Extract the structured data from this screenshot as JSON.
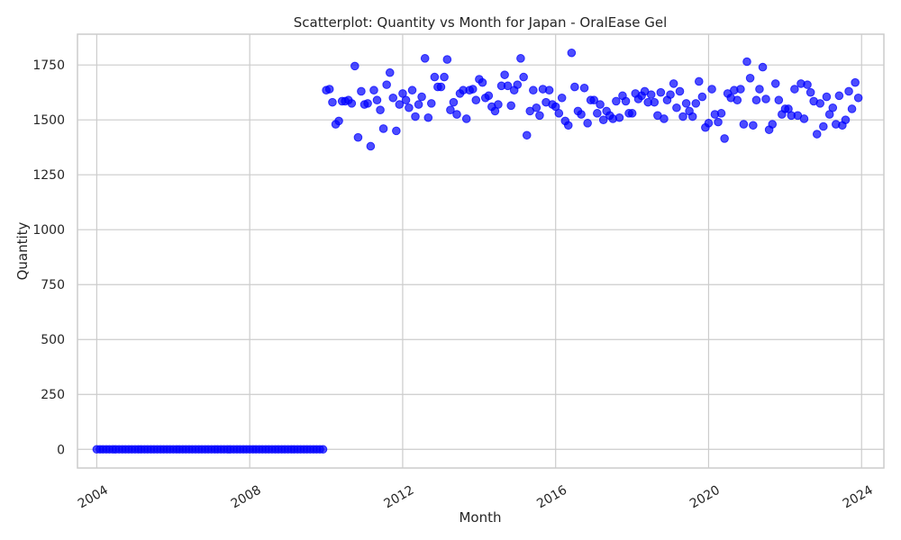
{
  "chart_data": {
    "type": "scatter",
    "title": "Scatterplot: Quantity vs Month for Japan - OralEase Gel",
    "xlabel": "Month",
    "ylabel": "Quantity",
    "xlim": [
      "2003-07-01",
      "2024-08-01"
    ],
    "ylim": [
      -85,
      1890
    ],
    "x_ticks": [
      {
        "label": "2004",
        "value": "2004-01-01"
      },
      {
        "label": "2008",
        "value": "2008-01-01"
      },
      {
        "label": "2012",
        "value": "2012-01-01"
      },
      {
        "label": "2016",
        "value": "2016-01-01"
      },
      {
        "label": "2020",
        "value": "2020-01-01"
      },
      {
        "label": "2024",
        "value": "2024-01-01"
      }
    ],
    "y_ticks": [
      0,
      250,
      500,
      750,
      1000,
      1250,
      1500,
      1750
    ],
    "grid": true,
    "color": "#0000ff",
    "x": [
      "2004-01",
      "2004-02",
      "2004-03",
      "2004-04",
      "2004-05",
      "2004-06",
      "2004-07",
      "2004-08",
      "2004-09",
      "2004-10",
      "2004-11",
      "2004-12",
      "2005-01",
      "2005-02",
      "2005-03",
      "2005-04",
      "2005-05",
      "2005-06",
      "2005-07",
      "2005-08",
      "2005-09",
      "2005-10",
      "2005-11",
      "2005-12",
      "2006-01",
      "2006-02",
      "2006-03",
      "2006-04",
      "2006-05",
      "2006-06",
      "2006-07",
      "2006-08",
      "2006-09",
      "2006-10",
      "2006-11",
      "2006-12",
      "2007-01",
      "2007-02",
      "2007-03",
      "2007-04",
      "2007-05",
      "2007-06",
      "2007-07",
      "2007-08",
      "2007-09",
      "2007-10",
      "2007-11",
      "2007-12",
      "2008-01",
      "2008-02",
      "2008-03",
      "2008-04",
      "2008-05",
      "2008-06",
      "2008-07",
      "2008-08",
      "2008-09",
      "2008-10",
      "2008-11",
      "2008-12",
      "2009-01",
      "2009-02",
      "2009-03",
      "2009-04",
      "2009-05",
      "2009-06",
      "2009-07",
      "2009-08",
      "2009-09",
      "2009-10",
      "2009-11",
      "2009-12",
      "2010-01",
      "2010-02",
      "2010-03",
      "2010-04",
      "2010-05",
      "2010-06",
      "2010-07",
      "2010-08",
      "2010-09",
      "2010-10",
      "2010-11",
      "2010-12",
      "2011-01",
      "2011-02",
      "2011-03",
      "2011-04",
      "2011-05",
      "2011-06",
      "2011-07",
      "2011-08",
      "2011-09",
      "2011-10",
      "2011-11",
      "2011-12",
      "2012-01",
      "2012-02",
      "2012-03",
      "2012-04",
      "2012-05",
      "2012-06",
      "2012-07",
      "2012-08",
      "2012-09",
      "2012-10",
      "2012-11",
      "2012-12",
      "2013-01",
      "2013-02",
      "2013-03",
      "2013-04",
      "2013-05",
      "2013-06",
      "2013-07",
      "2013-08",
      "2013-09",
      "2013-10",
      "2013-11",
      "2013-12",
      "2014-01",
      "2014-02",
      "2014-03",
      "2014-04",
      "2014-05",
      "2014-06",
      "2014-07",
      "2014-08",
      "2014-09",
      "2014-10",
      "2014-11",
      "2014-12",
      "2015-01",
      "2015-02",
      "2015-03",
      "2015-04",
      "2015-05",
      "2015-06",
      "2015-07",
      "2015-08",
      "2015-09",
      "2015-10",
      "2015-11",
      "2015-12",
      "2016-01",
      "2016-02",
      "2016-03",
      "2016-04",
      "2016-05",
      "2016-06",
      "2016-07",
      "2016-08",
      "2016-09",
      "2016-10",
      "2016-11",
      "2016-12",
      "2017-01",
      "2017-02",
      "2017-03",
      "2017-04",
      "2017-05",
      "2017-06",
      "2017-07",
      "2017-08",
      "2017-09",
      "2017-10",
      "2017-11",
      "2017-12",
      "2018-01",
      "2018-02",
      "2018-03",
      "2018-04",
      "2018-05",
      "2018-06",
      "2018-07",
      "2018-08",
      "2018-09",
      "2018-10",
      "2018-11",
      "2018-12",
      "2019-01",
      "2019-02",
      "2019-03",
      "2019-04",
      "2019-05",
      "2019-06",
      "2019-07",
      "2019-08",
      "2019-09",
      "2019-10",
      "2019-11",
      "2019-12",
      "2020-01",
      "2020-02",
      "2020-03",
      "2020-04",
      "2020-05",
      "2020-06",
      "2020-07",
      "2020-08",
      "2020-09",
      "2020-10",
      "2020-11",
      "2020-12",
      "2021-01",
      "2021-02",
      "2021-03",
      "2021-04",
      "2021-05",
      "2021-06",
      "2021-07",
      "2021-08",
      "2021-09",
      "2021-10",
      "2021-11",
      "2021-12",
      "2022-01",
      "2022-02",
      "2022-03",
      "2022-04",
      "2022-05",
      "2022-06",
      "2022-07",
      "2022-08",
      "2022-09",
      "2022-10",
      "2022-11",
      "2022-12",
      "2023-01",
      "2023-02",
      "2023-03",
      "2023-04",
      "2023-05",
      "2023-06",
      "2023-07",
      "2023-08",
      "2023-09",
      "2023-10",
      "2023-11",
      "2023-12"
    ],
    "y": [
      0,
      0,
      0,
      0,
      0,
      0,
      0,
      0,
      0,
      0,
      0,
      0,
      0,
      0,
      0,
      0,
      0,
      0,
      0,
      0,
      0,
      0,
      0,
      0,
      0,
      0,
      0,
      0,
      0,
      0,
      0,
      0,
      0,
      0,
      0,
      0,
      0,
      0,
      0,
      0,
      0,
      0,
      0,
      0,
      0,
      0,
      0,
      0,
      0,
      0,
      0,
      0,
      0,
      0,
      0,
      0,
      0,
      0,
      0,
      0,
      0,
      0,
      0,
      0,
      0,
      0,
      0,
      0,
      0,
      0,
      0,
      0,
      1635,
      1640,
      1580,
      1480,
      1495,
      1585,
      1585,
      1590,
      1575,
      1745,
      1420,
      1630,
      1570,
      1575,
      1380,
      1635,
      1590,
      1545,
      1460,
      1660,
      1715,
      1600,
      1450,
      1570,
      1620,
      1590,
      1555,
      1635,
      1515,
      1570,
      1605,
      1780,
      1510,
      1575,
      1695,
      1650,
      1650,
      1695,
      1775,
      1545,
      1580,
      1525,
      1620,
      1635,
      1505,
      1635,
      1640,
      1590,
      1685,
      1670,
      1600,
      1610,
      1560,
      1540,
      1570,
      1655,
      1705,
      1655,
      1565,
      1635,
      1660,
      1780,
      1695,
      1430,
      1540,
      1635,
      1555,
      1520,
      1640,
      1580,
      1635,
      1570,
      1560,
      1530,
      1600,
      1495,
      1475,
      1805,
      1650,
      1540,
      1525,
      1645,
      1485,
      1590,
      1590,
      1530,
      1570,
      1500,
      1540,
      1520,
      1505,
      1585,
      1510,
      1610,
      1585,
      1530,
      1530,
      1620,
      1595,
      1610,
      1630,
      1580,
      1615,
      1580,
      1520,
      1625,
      1505,
      1590,
      1615,
      1665,
      1555,
      1630,
      1515,
      1575,
      1540,
      1515,
      1575,
      1675,
      1605,
      1465,
      1485,
      1640,
      1525,
      1490,
      1530,
      1415,
      1620,
      1600,
      1635,
      1590,
      1640,
      1480,
      1765,
      1690,
      1475,
      1590,
      1640,
      1740,
      1595,
      1455,
      1480,
      1665,
      1590,
      1525,
      1550,
      1550,
      1520,
      1640,
      1520,
      1665,
      1505,
      1660,
      1625,
      1585,
      1435,
      1575,
      1470,
      1605,
      1525,
      1555,
      1480,
      1610,
      1475,
      1500,
      1630,
      1550,
      1670,
      1600
    ]
  }
}
